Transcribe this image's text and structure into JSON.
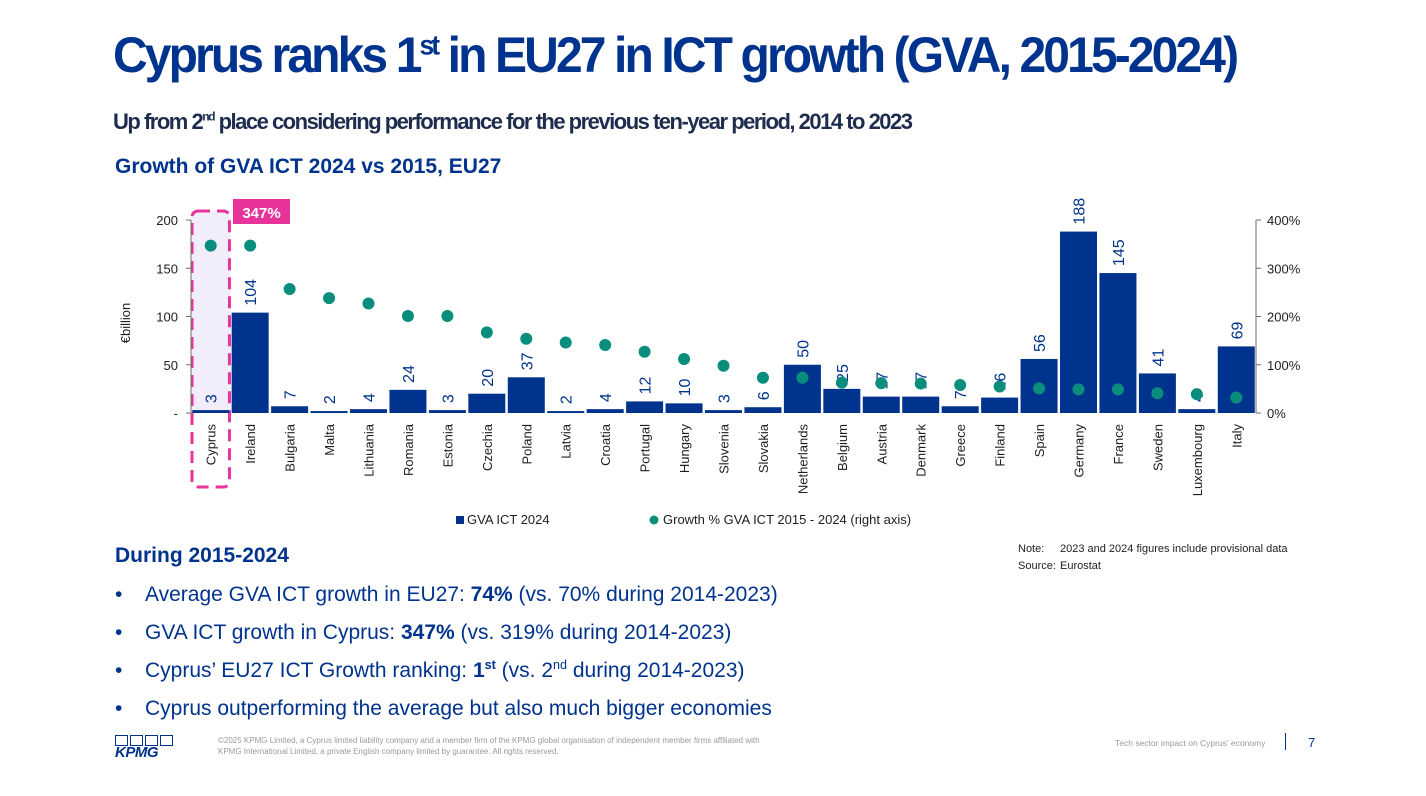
{
  "title": {
    "main": "Cyprus ranks 1",
    "sup": "st",
    "rest": " in EU27 in ICT growth (GVA, 2015-2024)"
  },
  "subtitle": {
    "pre": "Up from 2",
    "sup": "nd",
    "post": " place considering performance for the previous ten-year period, 2014 to 2023"
  },
  "chart_title": "Growth of GVA ICT 2024 vs 2015, EU27",
  "chart_data": {
    "type": "bar",
    "categories": [
      "Cyprus",
      "Ireland",
      "Bulgaria",
      "Malta",
      "Lithuania",
      "Romania",
      "Estonia",
      "Czechia",
      "Poland",
      "Latvia",
      "Croatia",
      "Portugal",
      "Hungary",
      "Slovenia",
      "Slovakia",
      "Netherlands",
      "Belgium",
      "Austria",
      "Denmark",
      "Greece",
      "Finland",
      "Spain",
      "Germany",
      "France",
      "Sweden",
      "Luxembourg",
      "Italy"
    ],
    "series": [
      {
        "name": "GVA ICT 2024",
        "type": "bar",
        "axis": "left",
        "color": "#00338D",
        "values": [
          3,
          104,
          7,
          2,
          4,
          24,
          3,
          20,
          37,
          2,
          4,
          12,
          10,
          3,
          6,
          50,
          25,
          17,
          17,
          7,
          16,
          56,
          188,
          145,
          41,
          4,
          69
        ]
      },
      {
        "name": "Growth % GVA ICT 2015 - 2024 (right axis)",
        "type": "scatter",
        "axis": "right",
        "color": "#098E7E",
        "values": [
          347,
          347,
          257,
          238,
          227,
          201,
          201,
          167,
          154,
          146,
          141,
          127,
          112,
          98,
          73,
          73,
          63,
          62,
          61,
          58,
          55,
          51,
          49,
          49,
          41,
          39,
          32
        ]
      }
    ],
    "ylabel": "€billion",
    "ylim": [
      0,
      200
    ],
    "y_ticks": [
      "-",
      "50",
      "100",
      "150",
      "200"
    ],
    "y2lim": [
      0,
      400
    ],
    "y2_ticks": [
      "0%",
      "100%",
      "200%",
      "300%",
      "400%"
    ],
    "highlight": {
      "category": "Cyprus",
      "label": "347%",
      "color": "#E8349A"
    },
    "legend_position": "bottom",
    "grid": false
  },
  "note": {
    "note_key": "Note:",
    "note_text": "2023 and 2024 figures include provisional data",
    "source_key": "Source:",
    "source_text": "Eurostat"
  },
  "section_title": "During 2015-2024",
  "bullet_char": "•",
  "bullets": [
    {
      "pre": "Average GVA ICT growth in EU27: ",
      "bold": "74%",
      "post": " (vs. 70% during 2014-2023)"
    },
    {
      "pre": "GVA ICT growth in Cyprus: ",
      "bold": "347%",
      "post": " (vs. 319% during 2014-2023)"
    },
    {
      "pre": "Cyprus’ EU27 ICT Growth ranking: ",
      "bold": "1",
      "bold_sup": "st",
      "post": " (vs. 2",
      "post_sup": "nd",
      "post2": " during 2014-2023)"
    },
    {
      "pre": "Cyprus outperforming the average but also much bigger economies",
      "bold": "",
      "post": ""
    }
  ],
  "footer": {
    "logo": "KPMG",
    "copyright": "©2025 KPMG Limited, a Cyprus limited liability company and a member firm of the KPMG global organisation of independent member firms affiliated with KPMG International Limited, a private English company limited by guarantee. All rights reserved.",
    "doc_title": "Tech sector impact on Cyprus’ economy",
    "page": "7"
  }
}
